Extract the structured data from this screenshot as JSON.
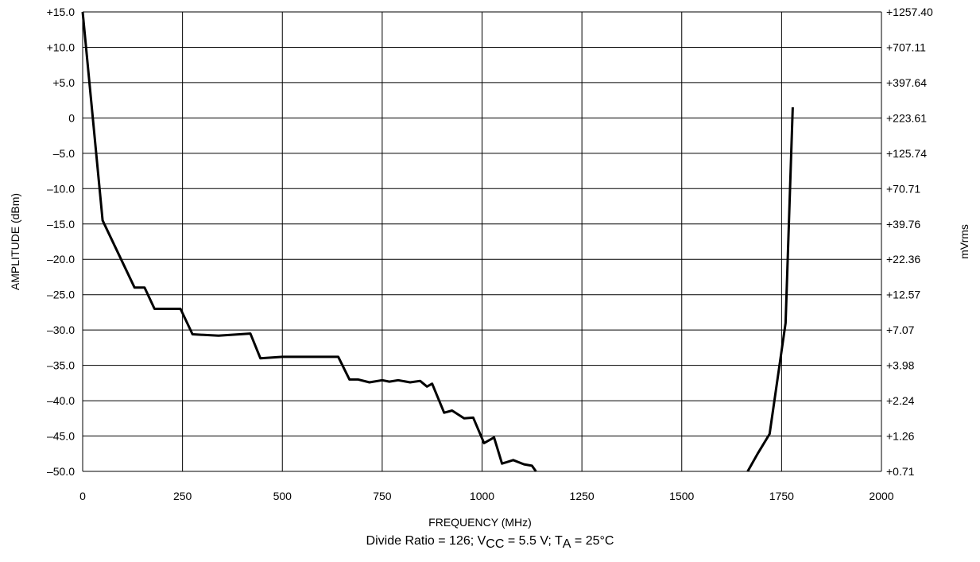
{
  "caption": {
    "divide_ratio": "Divide Ratio = 126; V",
    "vcc_sub": "CC",
    "vcc_rest": " = 5.5 V; T",
    "ta_sub": "A",
    "ta_rest": " = 25°C"
  },
  "chart_data": {
    "type": "line",
    "title": "",
    "xlabel": "FREQUENCY (MHz)",
    "ylabel": "AMPLITUDE (dBm)",
    "y2label": "mVrms",
    "xlim": [
      0,
      2000
    ],
    "ylim": [
      -50,
      15
    ],
    "grid": true,
    "x_ticks": [
      "0",
      "250",
      "500",
      "750",
      "1000",
      "1250",
      "1500",
      "1750",
      "2000"
    ],
    "y_ticks": [
      "+15.0",
      "+10.0",
      "+5.0",
      "0",
      "–5.0",
      "–10.0",
      "–15.0",
      "–20.0",
      "–25.0",
      "–30.0",
      "–35.0",
      "–40.0",
      "–45.0",
      "–50.0"
    ],
    "y2_ticks": [
      "+1257.40",
      "+707.11",
      "+397.64",
      "+223.61",
      "+125.74",
      "+70.71",
      "+39.76",
      "+22.36",
      "+12.57",
      "+7.07",
      "+3.98",
      "+2.24",
      "+1.26",
      "+0.71"
    ],
    "line_color": "#000000",
    "series": [
      {
        "points": [
          [
            0,
            15.0
          ],
          [
            50,
            -14.5
          ],
          [
            130,
            -24.0
          ],
          [
            155,
            -24.0
          ],
          [
            180,
            -27.0
          ],
          [
            245,
            -27.0
          ],
          [
            275,
            -30.6
          ],
          [
            340,
            -30.8
          ],
          [
            420,
            -30.5
          ],
          [
            445,
            -34.0
          ],
          [
            500,
            -33.8
          ],
          [
            640,
            -33.8
          ],
          [
            668,
            -37.0
          ],
          [
            690,
            -37.0
          ],
          [
            718,
            -37.4
          ],
          [
            750,
            -37.1
          ],
          [
            768,
            -37.3
          ],
          [
            790,
            -37.1
          ],
          [
            820,
            -37.4
          ],
          [
            845,
            -37.2
          ],
          [
            862,
            -38.0
          ],
          [
            875,
            -37.6
          ],
          [
            905,
            -41.7
          ],
          [
            925,
            -41.4
          ],
          [
            955,
            -42.5
          ],
          [
            978,
            -42.4
          ],
          [
            1005,
            -46.0
          ],
          [
            1030,
            -45.2
          ],
          [
            1050,
            -48.9
          ],
          [
            1078,
            -48.4
          ],
          [
            1105,
            -49.0
          ],
          [
            1125,
            -49.2
          ],
          [
            1135,
            -50.0
          ]
        ]
      },
      {
        "points": [
          [
            1665,
            -50.0
          ],
          [
            1690,
            -47.5
          ],
          [
            1720,
            -44.7
          ],
          [
            1760,
            -29.0
          ],
          [
            1778,
            1.5
          ]
        ]
      }
    ]
  }
}
